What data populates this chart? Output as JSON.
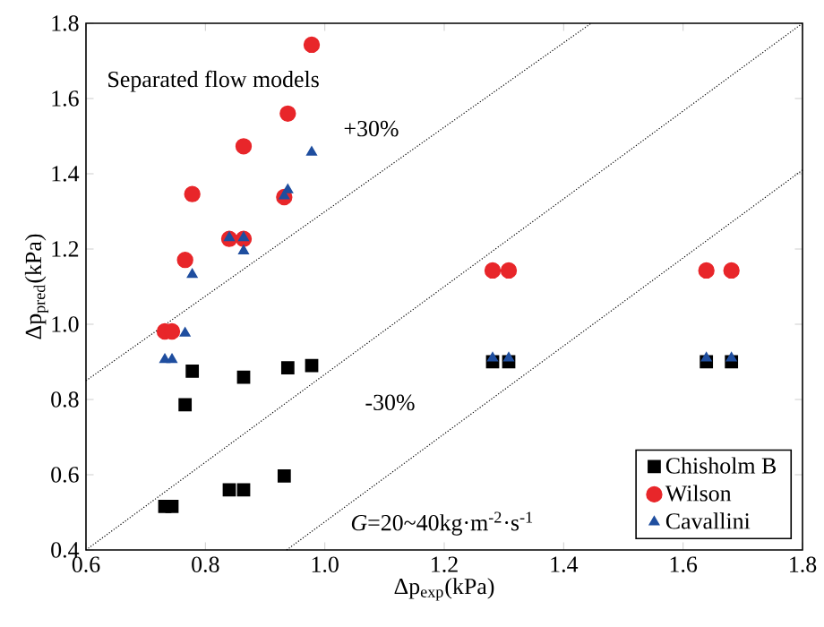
{
  "chart_data": {
    "type": "scatter",
    "xlabel": "Δp$_{exp}$(kPa)",
    "ylabel": "Δp$_{pred}$(kPa)",
    "xlim": [
      0.6,
      1.8
    ],
    "ylim": [
      0.4,
      1.8
    ],
    "xticks": [
      0.6,
      0.8,
      {
        "value": 1.0,
        "label": "1.0"
      },
      1.2,
      1.4,
      1.6,
      1.8
    ],
    "yticks": [
      0.4,
      0.6,
      0.8,
      {
        "value": 1.0,
        "label": "1.0"
      },
      1.2,
      1.4,
      1.6,
      1.8
    ],
    "grid": false,
    "legend": "bottom right",
    "annotations": [
      "Separated flow models",
      "+30%",
      "-30%",
      "*G*=20~40kg·m$^{-2}$·s$^{-1}$"
    ],
    "series": [
      {
        "name": "Chisholm B",
        "color": "#000000",
        "marker": "square",
        "x": [
          0.778,
          0.766,
          0.864,
          0.938,
          0.978,
          0.732,
          0.744,
          0.84,
          0.864,
          0.932,
          1.281,
          1.308,
          1.639,
          1.681
        ],
        "values": [
          0.875,
          0.786,
          0.859,
          0.884,
          0.89,
          0.516,
          0.516,
          0.56,
          0.56,
          0.597,
          0.9,
          0.9,
          0.9,
          0.9
        ]
      },
      {
        "name": "Wilson",
        "color": "#e8262a",
        "marker": "circle",
        "x": [
          0.978,
          0.938,
          0.864,
          0.778,
          0.766,
          0.732,
          0.744,
          0.84,
          0.864,
          0.932,
          1.281,
          1.308,
          1.639,
          1.681
        ],
        "values": [
          1.743,
          1.56,
          1.473,
          1.346,
          1.171,
          0.981,
          0.981,
          1.227,
          1.227,
          1.338,
          1.143,
          1.143,
          1.143,
          1.143
        ]
      },
      {
        "name": "Cavallini",
        "color": "#1f4e9f",
        "marker": "triangle",
        "x": [
          0.978,
          0.938,
          0.932,
          0.84,
          0.864,
          0.864,
          0.778,
          0.766,
          0.732,
          0.744,
          1.281,
          1.308,
          1.639,
          1.681
        ],
        "values": [
          1.457,
          1.357,
          1.341,
          1.23,
          1.23,
          1.195,
          1.132,
          0.976,
          0.906,
          0.906,
          0.91,
          0.91,
          0.91,
          0.91
        ]
      },
      {
        "type": "line",
        "color": "#000000",
        "line_style": "dotted",
        "x": [
          0.6,
          1.446
        ],
        "values": [
          0.85,
          1.8
        ]
      },
      {
        "type": "line",
        "color": "#000000",
        "line_style": "dotted",
        "x": [
          0.6,
          1.8
        ],
        "values": [
          0.4,
          1.8
        ]
      },
      {
        "type": "line",
        "color": "#000000",
        "line_style": "dotted",
        "x": [
          0.936,
          1.8
        ],
        "values": [
          0.4,
          1.41
        ]
      }
    ]
  }
}
